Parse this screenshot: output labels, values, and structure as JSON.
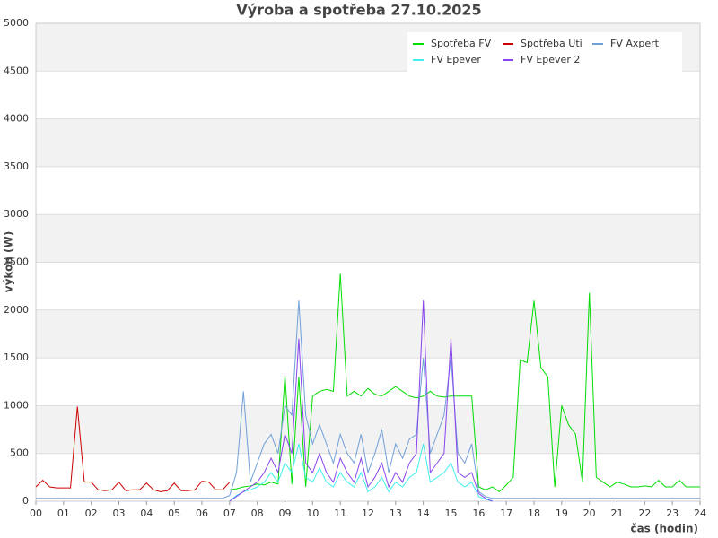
{
  "chart_data": {
    "type": "line",
    "title": "Výroba a spotřeba 27.10.2025",
    "xlabel": "čas (hodin)",
    "ylabel": "výkon (W)",
    "xlim": [
      0,
      24
    ],
    "ylim": [
      0,
      5000
    ],
    "xticks": [
      {
        "value": 0,
        "label": "00"
      },
      {
        "value": 1,
        "label": "01"
      },
      {
        "value": 2,
        "label": "02"
      },
      {
        "value": 3,
        "label": "03"
      },
      {
        "value": 4,
        "label": "04"
      },
      {
        "value": 5,
        "label": "05"
      },
      {
        "value": 6,
        "label": "06"
      },
      {
        "value": 7,
        "label": "07"
      },
      {
        "value": 8,
        "label": "08"
      },
      {
        "value": 9,
        "label": "09"
      },
      {
        "value": 10,
        "label": "10"
      },
      {
        "value": 11,
        "label": "11"
      },
      {
        "value": 12,
        "label": "12"
      },
      {
        "value": 13,
        "label": "13"
      },
      {
        "value": 14,
        "label": "14"
      },
      {
        "value": 15,
        "label": "15"
      },
      {
        "value": 16,
        "label": "16"
      },
      {
        "value": 17,
        "label": "17"
      },
      {
        "value": 18,
        "label": "18"
      },
      {
        "value": 19,
        "label": "19"
      },
      {
        "value": 20,
        "label": "20"
      },
      {
        "value": 21,
        "label": "21"
      },
      {
        "value": 22,
        "label": "22"
      },
      {
        "value": 23,
        "label": "23"
      },
      {
        "value": 24,
        "label": "24"
      }
    ],
    "yticks": [
      0,
      500,
      1000,
      1500,
      2000,
      2500,
      3000,
      3500,
      4000,
      4500,
      5000
    ],
    "grid": true,
    "legend": "upper right",
    "x": [
      0,
      0.25,
      0.5,
      0.75,
      1,
      1.25,
      1.5,
      1.75,
      2,
      2.25,
      2.5,
      2.75,
      3,
      3.25,
      3.5,
      3.75,
      4,
      4.25,
      4.5,
      4.75,
      5,
      5.25,
      5.5,
      5.75,
      6,
      6.25,
      6.5,
      6.75,
      7,
      7.25,
      7.5,
      7.75,
      8,
      8.25,
      8.5,
      8.75,
      9,
      9.25,
      9.5,
      9.75,
      10,
      10.25,
      10.5,
      10.75,
      11,
      11.25,
      11.5,
      11.75,
      12,
      12.25,
      12.5,
      12.75,
      13,
      13.25,
      13.5,
      13.75,
      14,
      14.25,
      14.5,
      14.75,
      15,
      15.25,
      15.5,
      15.75,
      16,
      16.25,
      16.5,
      16.75,
      17,
      17.25,
      17.5,
      17.75,
      18,
      18.25,
      18.5,
      18.75,
      19,
      19.25,
      19.5,
      19.75,
      20,
      20.25,
      20.5,
      20.75,
      21,
      21.25,
      21.5,
      21.75,
      22,
      22.25,
      22.5,
      22.75,
      23,
      23.25,
      23.5,
      23.75,
      24
    ],
    "series": [
      {
        "name": "Spotřeba FV",
        "color": "#00dd00",
        "values": [
          null,
          null,
          null,
          null,
          null,
          null,
          null,
          null,
          null,
          null,
          null,
          null,
          null,
          null,
          null,
          null,
          null,
          null,
          null,
          null,
          null,
          null,
          null,
          null,
          null,
          null,
          null,
          null,
          120,
          130,
          150,
          160,
          180,
          170,
          200,
          180,
          1320,
          180,
          1300,
          150,
          1100,
          1150,
          1170,
          1150,
          2380,
          1100,
          1150,
          1100,
          1180,
          1120,
          1100,
          1150,
          1200,
          1150,
          1100,
          1080,
          1100,
          1150,
          1100,
          1090,
          1100,
          1100,
          1100,
          1100,
          150,
          120,
          150,
          100,
          170,
          250,
          1480,
          1450,
          2100,
          1400,
          1300,
          150,
          1000,
          800,
          700,
          200,
          2180,
          250,
          200,
          150,
          200,
          180,
          150,
          150,
          160,
          150,
          220,
          150,
          150,
          220,
          150,
          150,
          150
        ]
      },
      {
        "name": "Spotřeba Uti",
        "color": "#cc0000",
        "values": [
          150,
          220,
          150,
          140,
          140,
          140,
          990,
          200,
          200,
          120,
          110,
          120,
          200,
          110,
          120,
          120,
          190,
          120,
          100,
          110,
          190,
          110,
          110,
          120,
          210,
          200,
          120,
          120,
          200,
          null,
          null,
          null,
          null,
          null,
          null,
          null,
          null,
          null,
          null,
          null,
          null,
          null,
          null,
          null,
          null,
          null,
          null,
          null,
          null,
          null,
          null,
          null,
          null,
          null,
          null,
          null,
          null,
          null,
          null,
          null,
          null,
          null,
          null,
          null,
          null,
          null,
          null,
          null,
          null,
          null,
          null,
          null,
          null,
          null,
          null,
          null,
          null,
          null,
          null,
          null,
          null,
          null,
          null,
          null,
          null,
          null,
          null,
          null,
          null,
          null,
          null,
          null,
          null,
          null,
          null,
          null,
          null
        ]
      },
      {
        "name": "FV Axpert",
        "color": "#6f9fd8",
        "values": [
          30,
          30,
          30,
          30,
          30,
          30,
          30,
          30,
          30,
          30,
          30,
          30,
          30,
          30,
          30,
          30,
          30,
          30,
          30,
          30,
          30,
          30,
          30,
          30,
          30,
          30,
          30,
          30,
          60,
          300,
          1150,
          200,
          400,
          600,
          700,
          500,
          1000,
          900,
          2100,
          900,
          600,
          800,
          600,
          400,
          700,
          500,
          400,
          700,
          300,
          500,
          750,
          300,
          600,
          450,
          650,
          700,
          1500,
          500,
          700,
          900,
          1500,
          500,
          400,
          600,
          100,
          50,
          30,
          30,
          30,
          30,
          30,
          30,
          30,
          30,
          30,
          30,
          30,
          30,
          30,
          30,
          30,
          30,
          30,
          30,
          30,
          30,
          30,
          30,
          30,
          30,
          30,
          30,
          30,
          30,
          30,
          30,
          30
        ]
      },
      {
        "name": "FV Epever",
        "color": "#40eeee",
        "values": [
          null,
          null,
          null,
          null,
          null,
          null,
          null,
          null,
          null,
          null,
          null,
          null,
          null,
          null,
          null,
          null,
          null,
          null,
          null,
          null,
          null,
          null,
          null,
          null,
          null,
          null,
          null,
          null,
          0,
          60,
          100,
          120,
          150,
          200,
          300,
          200,
          400,
          300,
          600,
          250,
          200,
          350,
          200,
          150,
          300,
          200,
          150,
          300,
          100,
          150,
          250,
          100,
          200,
          150,
          250,
          300,
          600,
          200,
          250,
          300,
          400,
          200,
          150,
          200,
          50,
          20,
          0,
          null,
          null,
          null,
          null,
          null,
          null,
          null,
          null,
          null,
          null,
          null,
          null,
          null,
          null,
          null,
          null,
          null,
          null,
          null,
          null,
          null,
          null,
          null,
          null,
          null,
          null,
          null,
          null,
          null,
          null
        ]
      },
      {
        "name": "FV Epever 2",
        "color": "#8844ee",
        "values": [
          null,
          null,
          null,
          null,
          null,
          null,
          null,
          null,
          null,
          null,
          null,
          null,
          null,
          null,
          null,
          null,
          null,
          null,
          null,
          null,
          null,
          null,
          null,
          null,
          null,
          null,
          null,
          null,
          0,
          50,
          100,
          150,
          200,
          300,
          450,
          300,
          700,
          500,
          1700,
          400,
          300,
          500,
          300,
          200,
          450,
          300,
          200,
          450,
          150,
          250,
          400,
          150,
          300,
          200,
          400,
          500,
          2100,
          300,
          400,
          500,
          1700,
          300,
          250,
          300,
          80,
          30,
          0,
          null,
          null,
          null,
          null,
          null,
          null,
          null,
          null,
          null,
          null,
          null,
          null,
          null,
          null,
          null,
          null,
          null,
          null,
          null,
          null,
          null,
          null,
          null,
          null,
          null,
          null,
          null,
          null,
          null,
          null
        ]
      }
    ]
  }
}
